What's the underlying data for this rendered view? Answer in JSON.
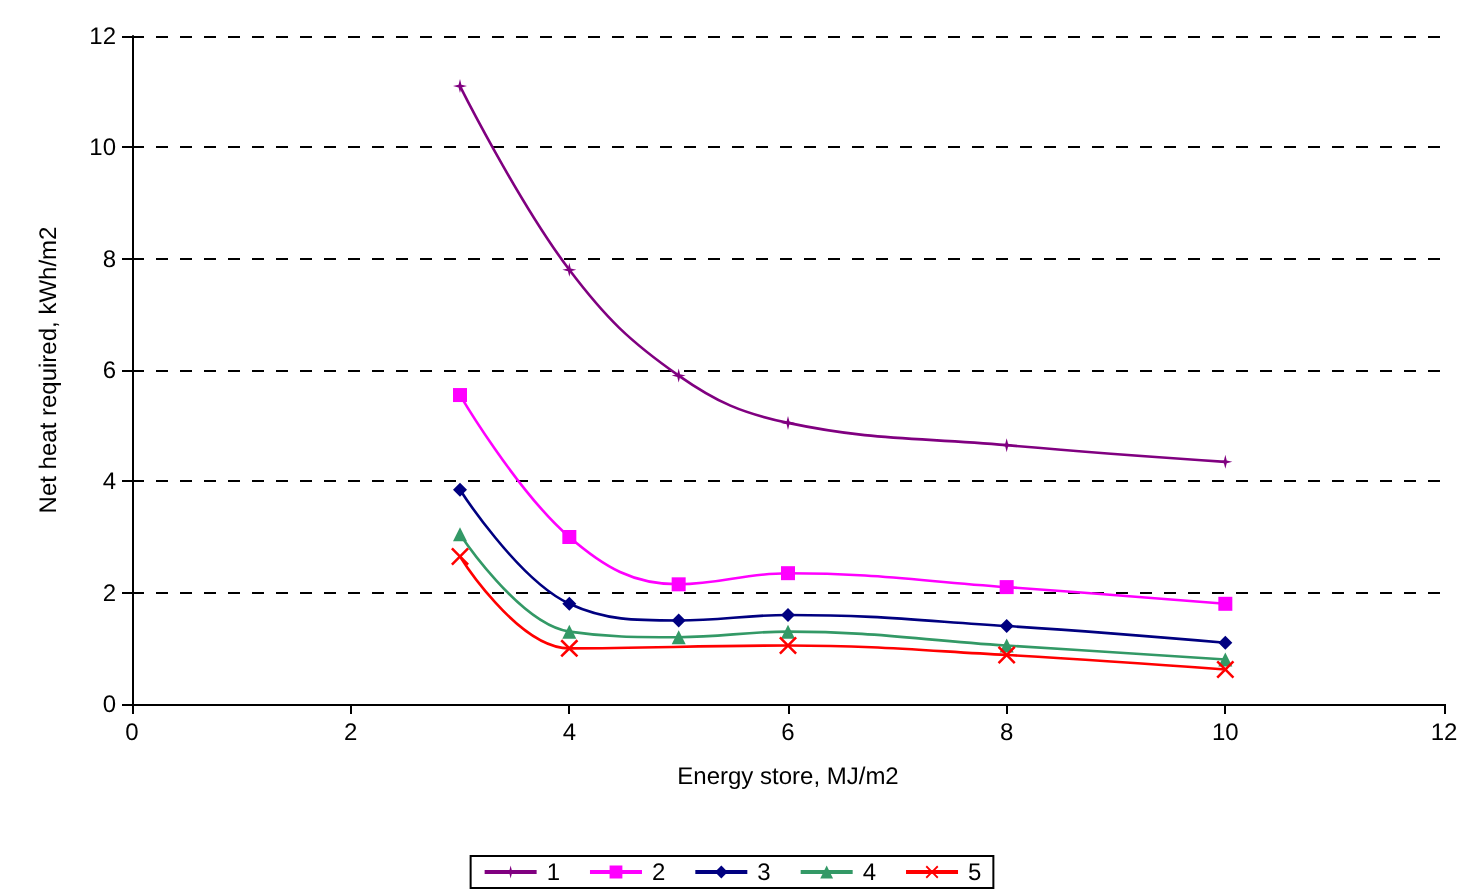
{
  "chart_data": {
    "type": "line",
    "xlabel": "Energy store, MJ/m2",
    "ylabel": "Net heat required, kWh/m2",
    "x": [
      3,
      4,
      5,
      6,
      8,
      10
    ],
    "series": [
      {
        "name": "1",
        "color": "#800080",
        "marker": "star",
        "values": [
          11.1,
          7.8,
          5.9,
          5.05,
          4.65,
          4.35
        ]
      },
      {
        "name": "2",
        "color": "#ff00ff",
        "marker": "square",
        "values": [
          5.55,
          3.0,
          2.15,
          2.35,
          2.1,
          1.8
        ]
      },
      {
        "name": "3",
        "color": "#000080",
        "marker": "diamond",
        "values": [
          3.85,
          1.8,
          1.5,
          1.6,
          1.4,
          1.1
        ]
      },
      {
        "name": "4",
        "color": "#339966",
        "marker": "triangle",
        "values": [
          3.05,
          1.3,
          1.2,
          1.3,
          1.05,
          0.8
        ]
      },
      {
        "name": "5",
        "color": "#ff0000",
        "marker": "cross",
        "x": [
          3,
          4,
          6,
          8,
          10
        ],
        "values": [
          2.65,
          1.0,
          1.05,
          0.88,
          0.62
        ]
      }
    ],
    "xlim": [
      0,
      12
    ],
    "xticks": [
      0,
      2,
      4,
      6,
      8,
      10,
      12
    ],
    "ylim": [
      0,
      12
    ],
    "yticks": [
      0,
      2,
      4,
      6,
      8,
      10,
      12
    ],
    "grid": "y",
    "legend": "bottom"
  }
}
